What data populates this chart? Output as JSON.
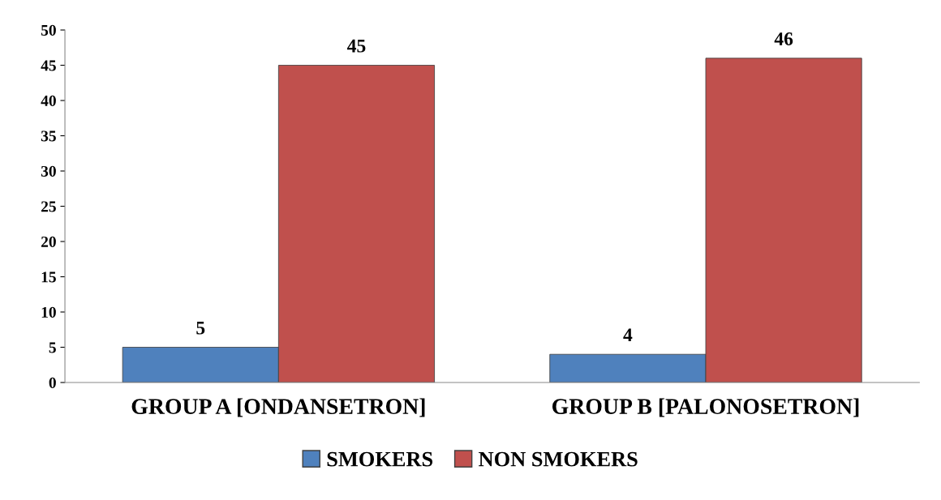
{
  "chart_data": {
    "type": "bar",
    "categories": [
      "GROUP A [ONDANSETRON]",
      "GROUP B [PALONOSETRON]"
    ],
    "series": [
      {
        "name": "SMOKERS",
        "color": "#4f81bd",
        "values": [
          5,
          4
        ]
      },
      {
        "name": "NON SMOKERS",
        "color": "#c0504d",
        "values": [
          45,
          46
        ]
      }
    ],
    "ylim": [
      0,
      50
    ],
    "yticks": [
      0,
      5,
      10,
      15,
      20,
      25,
      30,
      35,
      40,
      45,
      50
    ],
    "grid": false,
    "legend": "bottom",
    "data_labels": true
  }
}
